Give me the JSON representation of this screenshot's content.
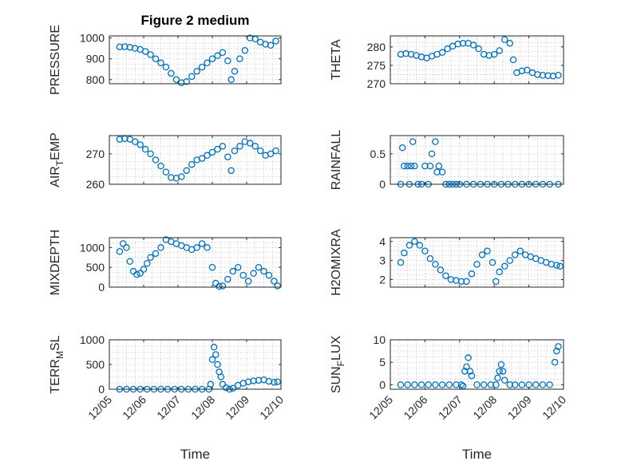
{
  "figure_title": "Figure 2 medium",
  "colors": {
    "marker": "#0072BD",
    "axis": "#262626",
    "grid": "#c8c8c8"
  },
  "chart_data": [
    {
      "type": "scatter",
      "ylabel": "PRESSURE",
      "xlabel": "",
      "xlim": [
        0,
        5
      ],
      "ylim": [
        780,
        1010
      ],
      "yticks": [
        800,
        900,
        1000
      ],
      "xticks": [],
      "grid": true,
      "x": [
        0.3,
        0.45,
        0.6,
        0.75,
        0.9,
        1.05,
        1.2,
        1.35,
        1.5,
        1.65,
        1.8,
        1.95,
        2.1,
        2.25,
        2.4,
        2.55,
        2.7,
        2.85,
        3.0,
        3.15,
        3.3,
        3.45,
        3.55,
        3.65,
        3.8,
        3.95,
        4.1,
        4.25,
        4.4,
        4.55,
        4.7,
        4.85
      ],
      "y": [
        957,
        958,
        955,
        950,
        945,
        935,
        920,
        900,
        880,
        860,
        830,
        800,
        785,
        790,
        815,
        840,
        860,
        880,
        900,
        915,
        930,
        890,
        800,
        840,
        900,
        940,
        1000,
        995,
        980,
        970,
        965,
        985
      ]
    },
    {
      "type": "scatter",
      "ylabel": "THETA",
      "xlabel": "",
      "xlim": [
        0,
        5
      ],
      "ylim": [
        270,
        283
      ],
      "yticks": [
        270,
        275,
        280
      ],
      "xticks": [],
      "grid": true,
      "x": [
        0.3,
        0.45,
        0.6,
        0.75,
        0.9,
        1.05,
        1.2,
        1.35,
        1.5,
        1.65,
        1.8,
        1.95,
        2.1,
        2.25,
        2.4,
        2.55,
        2.7,
        2.85,
        3.0,
        3.15,
        3.3,
        3.45,
        3.55,
        3.65,
        3.8,
        3.95,
        4.1,
        4.25,
        4.4,
        4.55,
        4.7,
        4.85
      ],
      "y": [
        278,
        278.2,
        278,
        277.7,
        277.3,
        277,
        277.5,
        278,
        278.5,
        279.5,
        280.2,
        280.8,
        281,
        281,
        280.5,
        279.5,
        278,
        277.7,
        278,
        279,
        282,
        281,
        276.5,
        273,
        273.5,
        273.7,
        273,
        272.5,
        272.3,
        272.2,
        272.1,
        272.3
      ]
    },
    {
      "type": "scatter",
      "ylabel": "AIR_TEMP",
      "xlabel": "",
      "xlim": [
        0,
        5
      ],
      "ylim": [
        260,
        276
      ],
      "yticks": [
        260,
        270
      ],
      "xticks": [],
      "grid": true,
      "x": [
        0.3,
        0.45,
        0.6,
        0.75,
        0.9,
        1.05,
        1.2,
        1.35,
        1.5,
        1.65,
        1.8,
        1.95,
        2.1,
        2.25,
        2.4,
        2.55,
        2.7,
        2.85,
        3.0,
        3.15,
        3.3,
        3.45,
        3.55,
        3.65,
        3.8,
        3.95,
        4.1,
        4.25,
        4.4,
        4.55,
        4.7,
        4.85
      ],
      "y": [
        274.8,
        275,
        274.8,
        274,
        273,
        271.5,
        270,
        268,
        266,
        264,
        262.2,
        262,
        262.5,
        264.5,
        266.5,
        268,
        268.5,
        269.5,
        270.5,
        271.5,
        272.5,
        269,
        264.5,
        271,
        272.5,
        274,
        273.5,
        272.5,
        271,
        269.5,
        270,
        271
      ]
    },
    {
      "type": "scatter",
      "ylabel": "RAINFALL",
      "xlabel": "",
      "xlim": [
        0,
        5
      ],
      "ylim": [
        0,
        0.8
      ],
      "yticks": [
        0,
        0.5
      ],
      "xticks": [],
      "grid": true,
      "x": [
        0.3,
        0.35,
        0.4,
        0.5,
        0.55,
        0.6,
        0.65,
        0.7,
        0.8,
        0.9,
        1.0,
        1.1,
        1.15,
        1.2,
        1.3,
        1.35,
        1.4,
        1.5,
        1.6,
        1.7,
        1.8,
        1.9,
        2.0,
        2.2,
        2.4,
        2.6,
        2.8,
        3.0,
        3.2,
        3.4,
        3.6,
        3.8,
        4.0,
        4.2,
        4.4,
        4.6,
        4.85
      ],
      "y": [
        0,
        0.6,
        0.3,
        0.3,
        0,
        0.3,
        0.7,
        0.3,
        0,
        0,
        0.3,
        0,
        0.3,
        0.5,
        0.7,
        0.2,
        0.3,
        0.2,
        0,
        0,
        0,
        0,
        0,
        0,
        0,
        0,
        0,
        0,
        0,
        0,
        0,
        0,
        0,
        0,
        0,
        0,
        0
      ]
    },
    {
      "type": "scatter",
      "ylabel": "MIXDEPTH",
      "xlabel": "",
      "xlim": [
        0,
        5
      ],
      "ylim": [
        0,
        1250
      ],
      "yticks": [
        0,
        500,
        1000
      ],
      "xticks": [],
      "grid": true,
      "x": [
        0.3,
        0.4,
        0.5,
        0.6,
        0.7,
        0.8,
        0.9,
        1.0,
        1.1,
        1.2,
        1.35,
        1.5,
        1.65,
        1.8,
        1.95,
        2.1,
        2.25,
        2.4,
        2.55,
        2.7,
        2.85,
        3.0,
        3.1,
        3.2,
        3.3,
        3.45,
        3.6,
        3.75,
        3.9,
        4.05,
        4.2,
        4.35,
        4.5,
        4.65,
        4.8,
        4.9
      ],
      "y": [
        900,
        1100,
        1000,
        650,
        400,
        320,
        350,
        450,
        600,
        750,
        850,
        1000,
        1200,
        1150,
        1100,
        1050,
        1000,
        950,
        1000,
        1100,
        1000,
        500,
        100,
        20,
        30,
        200,
        400,
        500,
        300,
        150,
        350,
        500,
        400,
        300,
        150,
        30
      ]
    },
    {
      "type": "scatter",
      "ylabel": "H2OMIXRA",
      "xlabel": "",
      "xlim": [
        0,
        5
      ],
      "ylim": [
        1.6,
        4.2
      ],
      "yticks": [
        2,
        3,
        4
      ],
      "xticks": [],
      "grid": true,
      "x": [
        0.3,
        0.4,
        0.55,
        0.7,
        0.85,
        1.0,
        1.15,
        1.3,
        1.45,
        1.6,
        1.75,
        1.9,
        2.05,
        2.2,
        2.35,
        2.5,
        2.65,
        2.8,
        2.95,
        3.05,
        3.15,
        3.3,
        3.45,
        3.6,
        3.75,
        3.9,
        4.05,
        4.2,
        4.35,
        4.5,
        4.65,
        4.8,
        4.9
      ],
      "y": [
        2.9,
        3.4,
        3.8,
        4.0,
        3.8,
        3.5,
        3.1,
        2.8,
        2.5,
        2.2,
        2.0,
        1.95,
        1.9,
        1.9,
        2.3,
        2.8,
        3.3,
        3.5,
        2.9,
        1.9,
        2.4,
        2.7,
        3.0,
        3.3,
        3.5,
        3.3,
        3.2,
        3.1,
        3.0,
        2.9,
        2.8,
        2.75,
        2.7
      ]
    },
    {
      "type": "scatter",
      "ylabel": "TERR_MSL",
      "xlabel": "Time",
      "xlim": [
        0,
        5
      ],
      "ylim": [
        0,
        1000
      ],
      "yticks": [
        0,
        500,
        1000
      ],
      "xticks": [
        "12/05",
        "12/06",
        "12/07",
        "12/08",
        "12/09",
        "12/10"
      ],
      "grid": true,
      "x": [
        0.3,
        0.5,
        0.7,
        0.9,
        1.1,
        1.3,
        1.5,
        1.7,
        1.9,
        2.1,
        2.3,
        2.5,
        2.7,
        2.9,
        2.95,
        3.0,
        3.05,
        3.1,
        3.15,
        3.2,
        3.25,
        3.3,
        3.4,
        3.5,
        3.6,
        3.75,
        3.9,
        4.05,
        4.2,
        4.35,
        4.5,
        4.65,
        4.8,
        4.9
      ],
      "y": [
        0,
        0,
        0,
        0,
        0,
        0,
        0,
        0,
        0,
        0,
        0,
        0,
        0,
        0,
        100,
        600,
        850,
        700,
        500,
        350,
        250,
        100,
        30,
        0,
        20,
        80,
        120,
        150,
        170,
        180,
        190,
        160,
        140,
        150
      ]
    },
    {
      "type": "scatter",
      "ylabel": "SUN_FLUX",
      "xlabel": "Time",
      "xlim": [
        0,
        5
      ],
      "ylim": [
        -1,
        10
      ],
      "yticks": [
        0,
        5,
        10
      ],
      "xticks": [
        "12/05",
        "12/06",
        "12/07",
        "12/08",
        "12/09",
        "12/10"
      ],
      "grid": true,
      "x": [
        0.3,
        0.5,
        0.7,
        0.9,
        1.1,
        1.3,
        1.5,
        1.7,
        1.9,
        2.05,
        2.1,
        2.15,
        2.2,
        2.25,
        2.3,
        2.35,
        2.5,
        2.7,
        2.9,
        3.05,
        3.1,
        3.15,
        3.2,
        3.25,
        3.3,
        3.45,
        3.6,
        3.8,
        4.0,
        4.2,
        4.4,
        4.6,
        4.75,
        4.8,
        4.85
      ],
      "y": [
        0,
        0,
        0,
        0,
        0,
        0,
        0,
        0,
        0,
        0,
        -0.3,
        3,
        4,
        6,
        3,
        2,
        0,
        0,
        0,
        0,
        1.5,
        3,
        4.5,
        3,
        1,
        0,
        0,
        0,
        0,
        0,
        0,
        0,
        5,
        7.5,
        8.5
      ]
    }
  ]
}
